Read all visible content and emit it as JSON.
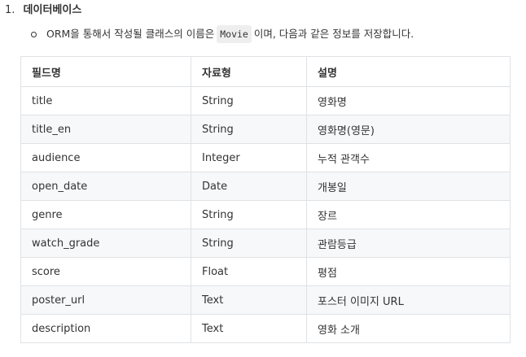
{
  "heading": {
    "number": "1.",
    "title": "데이터베이스"
  },
  "bullet": {
    "text_before": "ORM을 통해서 작성될 클래스의 이름은",
    "code": "Movie",
    "text_after": "이며, 다음과 같은 정보를 저장합니다."
  },
  "table": {
    "headers": [
      "필드명",
      "자료형",
      "설명"
    ],
    "rows": [
      [
        "title",
        "String",
        "영화명"
      ],
      [
        "title_en",
        "String",
        "영화명(영문)"
      ],
      [
        "audience",
        "Integer",
        "누적 관객수"
      ],
      [
        "open_date",
        "Date",
        "개봉일"
      ],
      [
        "genre",
        "String",
        "장르"
      ],
      [
        "watch_grade",
        "String",
        "관람등급"
      ],
      [
        "score",
        "Float",
        "평점"
      ],
      [
        "poster_url",
        "Text",
        "포스터 이미지 URL"
      ],
      [
        "description",
        "Text",
        "영화 소개"
      ]
    ]
  }
}
